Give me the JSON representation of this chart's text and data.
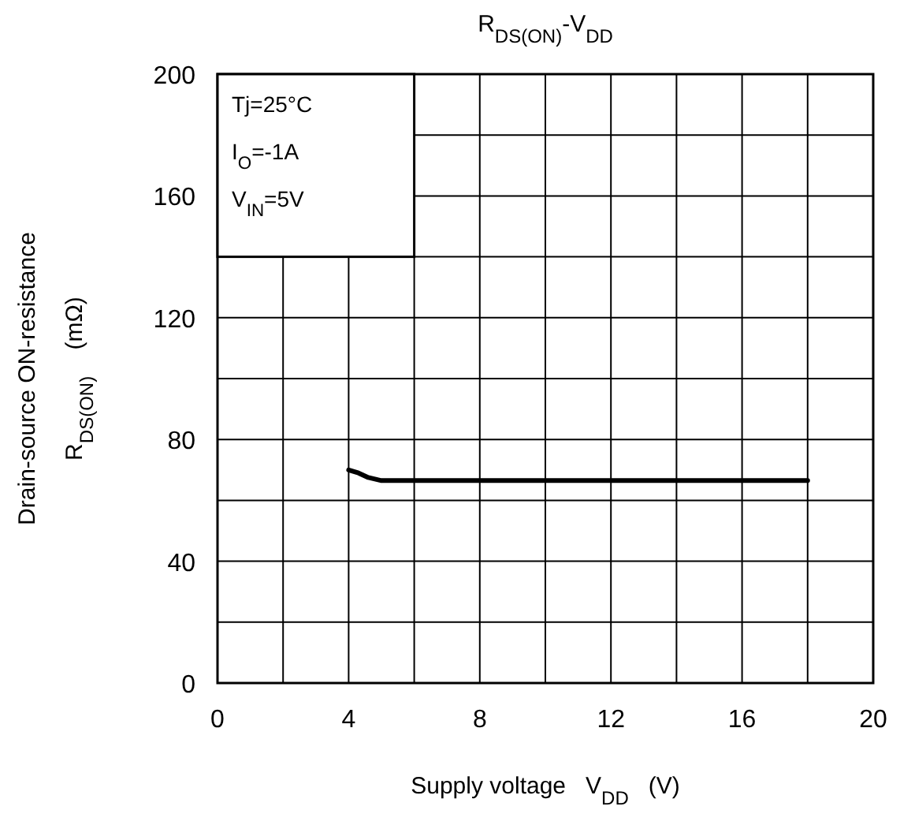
{
  "chart_data": {
    "type": "line",
    "title": "R$_{DS(ON)}$-V$_{DD}$",
    "xlabel": "Supply voltage   V$_{DD}$   (V)",
    "ylabel": "Drain-source ON-resistance\nR$_{DS(ON)}$    (mΩ)",
    "annotations": [
      "Tj=25°C",
      "I$_{O}$=-1A",
      "V$_{IN}$=5V"
    ],
    "x": [
      4,
      4.3,
      4.6,
      5,
      6,
      10,
      14,
      18
    ],
    "series": [
      {
        "color": "#000000",
        "values": [
          70,
          69,
          67.5,
          66.5,
          66.5,
          66.5,
          66.5,
          66.5
        ]
      }
    ],
    "xlim": [
      0,
      20
    ],
    "xticks": [
      0,
      {
        "value": 2,
        "label": null
      },
      4,
      {
        "value": 6,
        "label": null
      },
      8,
      {
        "value": 10,
        "label": null
      },
      12,
      {
        "value": 14,
        "label": null
      },
      16,
      {
        "value": 18,
        "label": null
      },
      20
    ],
    "ylim": [
      0,
      200
    ],
    "yticks": [
      0,
      {
        "value": 20,
        "label": null
      },
      40,
      {
        "value": 60,
        "label": null
      },
      80,
      {
        "value": 100,
        "label": null
      },
      120,
      {
        "value": 140,
        "label": null
      },
      160,
      {
        "value": 180,
        "label": null
      },
      200
    ],
    "grid": true,
    "marker": "none",
    "line_style": "solid"
  }
}
